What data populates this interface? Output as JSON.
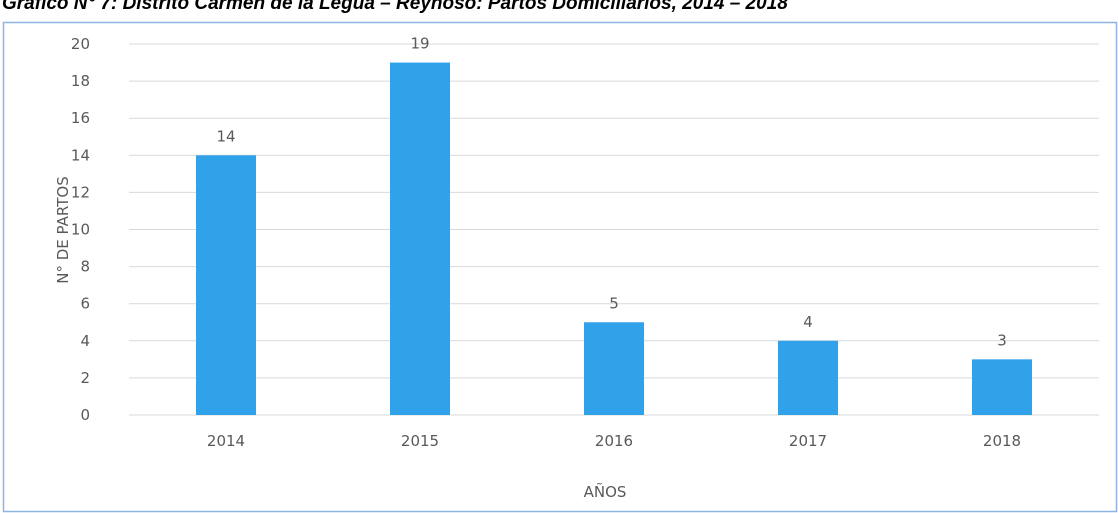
{
  "chart_data": {
    "type": "bar",
    "title": "Gráfico N° 7: Distrito Carmen de la Legua – Reynoso: Partos Domiciliarios, 2014 – 2018",
    "x_label": "AÑOS",
    "y_label": "N° DE PARTOS",
    "categories": [
      "2014",
      "2015",
      "2016",
      "2017",
      "2018"
    ],
    "values": [
      14,
      19,
      5,
      4,
      3
    ],
    "color": "#30a2ea",
    "ylim": [
      0,
      20
    ],
    "yticks": [
      0,
      2,
      4,
      6,
      8,
      10,
      12,
      14,
      16,
      18,
      20
    ],
    "grid": true
  }
}
